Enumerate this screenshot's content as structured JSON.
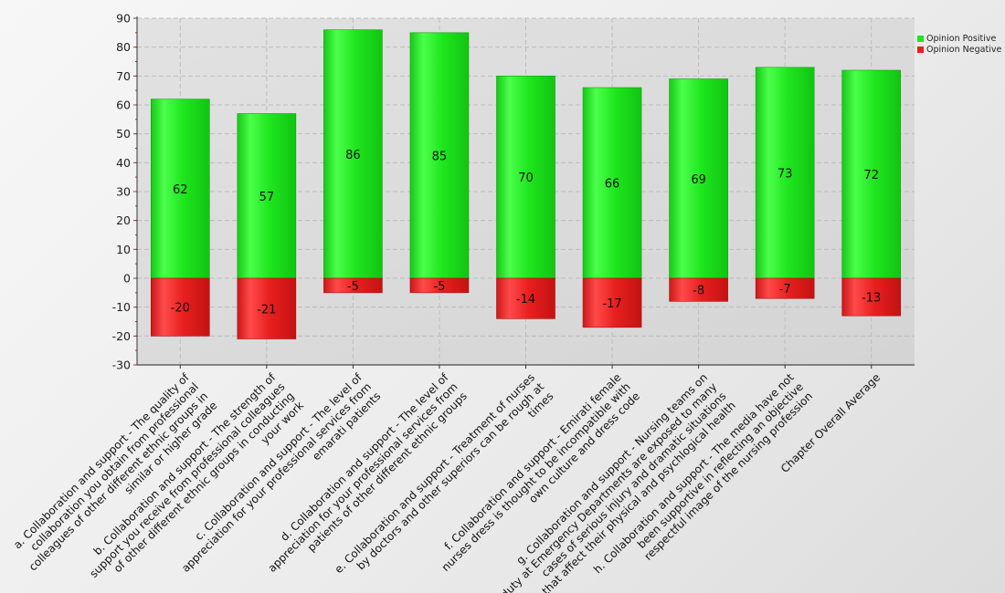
{
  "chart_data": {
    "type": "bar",
    "stacked": true,
    "categories": [
      "a. Collaboration and support - The quality of collaboration you obtain from professional colleagues of other different ethnic groups in similar or higher grade",
      "b. Collaboration and support - The strength of support you receive from professional colleagues of other different ethnic groups in conducting your work",
      "c. Collaboration and support - The level of appreciation for your professional services from emarati patients",
      "d. Collaboration and support - The level of appreciation for your professional services from patients of other different ethnic groups",
      "e. Collaboration and support - Treatment of nurses by doctors and other superiors can be rough at times",
      "f. Collaboration and support - Emirati female nurses dress is thought to be incompatible with own culture and dress code",
      "g. Collaboration and support - Nursing teams on duty at Emergency Departments are exposed to many cases of serious injury and dramatic situations that affect their physical and psychlogical health",
      "h. Collaboration and support - The media have not been supportive in reflecting an objective respectful image of the nursing profession",
      "Chapter Overall Average"
    ],
    "category_label_lines": [
      [
        "a. Collaboration and support - The quality of",
        "collaboration you obtain from professional",
        "colleagues of other different ethnic groups in",
        "similar or higher grade"
      ],
      [
        "b. Collaboration and support - The strength of",
        "support you receive from professional colleagues",
        "of other different ethnic groups in conducting",
        "your work"
      ],
      [
        "c. Collaboration and support - The level of",
        "appreciation for your professional services from",
        "emarati patients"
      ],
      [
        "d. Collaboration and support - The level of",
        "appreciation for your professional services from",
        "patients of other different ethnic groups"
      ],
      [
        "e. Collaboration and support - Treatment of nurses",
        "by doctors and other superiors can be rough at",
        "times"
      ],
      [
        "f. Collaboration and support - Emirati female",
        "nurses dress is thought to be incompatible with",
        "own culture and dress code"
      ],
      [
        "g. Collaboration and support - Nursing teams on",
        "duty at Emergency Departments are exposed to many",
        "cases of serious injury and dramatic situations",
        "that affect their physical and psychlogical health"
      ],
      [
        "h. Collaboration and support - The media have not",
        "been supportive in reflecting an objective",
        "respectful image of the nursing profession"
      ],
      [
        "Chapter Overall Average"
      ]
    ],
    "series": [
      {
        "name": "Opinion Positive",
        "color": "#1fe51f",
        "values": [
          62,
          57,
          86,
          85,
          70,
          66,
          69,
          73,
          72
        ]
      },
      {
        "name": "Opinion Negative",
        "color": "#e81f1f",
        "values": [
          -20,
          -21,
          -5,
          -5,
          -14,
          -17,
          -8,
          -7,
          -13
        ]
      }
    ],
    "ylim": [
      -30,
      90
    ],
    "yticks": [
      -30,
      -20,
      -10,
      0,
      10,
      20,
      30,
      40,
      50,
      60,
      70,
      80,
      90
    ],
    "grid": true,
    "legend_position": "right"
  }
}
